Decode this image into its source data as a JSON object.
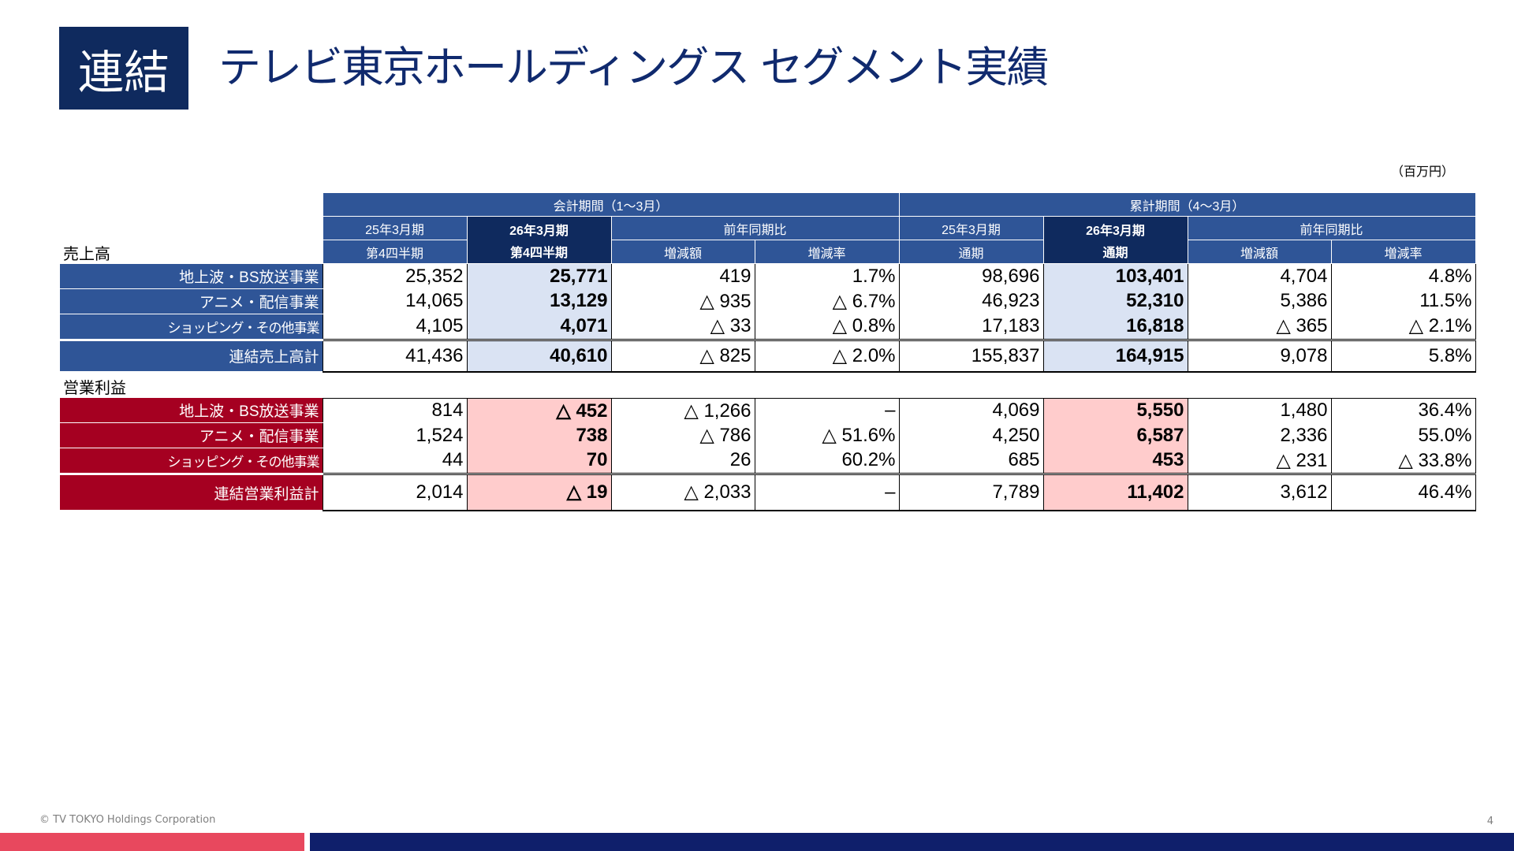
{
  "header": {
    "badge": "連結",
    "title": "テレビ東京ホールディングス セグメント実績"
  },
  "unit_label": "（百万円）",
  "table": {
    "group_quarter": "会計期間（1～3月）",
    "group_cumulative": "累計期間（4～3月）",
    "col_prev_q_l1": "25年3月期",
    "col_prev_q_l2": "第4四半期",
    "col_cur_q_l1": "26年3月期",
    "col_cur_q_l2": "第4四半期",
    "yoy": "前年同期比",
    "diff": "増減額",
    "rate": "増減率",
    "col_prev_y_l1": "25年3月期",
    "col_prev_y_l2": "通期",
    "col_cur_y_l1": "26年3月期",
    "col_cur_y_l2": "通期",
    "yoy2": "前年同期比",
    "diff2": "増減額",
    "rate2": "増減率",
    "section_sales": "売上高",
    "section_profit": "営業利益",
    "sales_rows": [
      {
        "label": "地上波・BS放送事業",
        "v": [
          "25,352",
          "25,771",
          "419",
          "1.7%",
          "98,696",
          "103,401",
          "4,704",
          "4.8%"
        ]
      },
      {
        "label": "アニメ・配信事業",
        "v": [
          "14,065",
          "13,129",
          "△ 935",
          "△ 6.7%",
          "46,923",
          "52,310",
          "5,386",
          "11.5%"
        ]
      },
      {
        "label": "ショッピング・その他事業",
        "v": [
          "4,105",
          "4,071",
          "△ 33",
          "△ 0.8%",
          "17,183",
          "16,818",
          "△ 365",
          "△ 2.1%"
        ]
      }
    ],
    "sales_total": {
      "label": "連結売上高計",
      "v": [
        "41,436",
        "40,610",
        "△ 825",
        "△ 2.0%",
        "155,837",
        "164,915",
        "9,078",
        "5.8%"
      ]
    },
    "profit_rows": [
      {
        "label": "地上波・BS放送事業",
        "v": [
          "814",
          "△ 452",
          "△ 1,266",
          "–",
          "4,069",
          "5,550",
          "1,480",
          "36.4%"
        ]
      },
      {
        "label": "アニメ・配信事業",
        "v": [
          "1,524",
          "738",
          "△ 786",
          "△ 51.6%",
          "4,250",
          "6,587",
          "2,336",
          "55.0%"
        ]
      },
      {
        "label": "ショッピング・その他事業",
        "v": [
          "44",
          "70",
          "26",
          "60.2%",
          "685",
          "453",
          "△ 231",
          "△ 33.8%"
        ]
      }
    ],
    "profit_total": {
      "label": "連結営業利益計",
      "v": [
        "2,014",
        "△ 19",
        "△ 2,033",
        "–",
        "7,789",
        "11,402",
        "3,612",
        "46.4%"
      ]
    }
  },
  "footer": {
    "copyright": "© TV TOKYO Holdings Corporation",
    "page": "4"
  },
  "colors": {
    "navy": "#0f2a5e",
    "blue": "#2f5597",
    "red": "#a50021",
    "highlight_blue": "#dae3f3",
    "highlight_red": "#ffcccc",
    "footer_red": "#e8485e",
    "footer_navy": "#0f1f6b"
  }
}
